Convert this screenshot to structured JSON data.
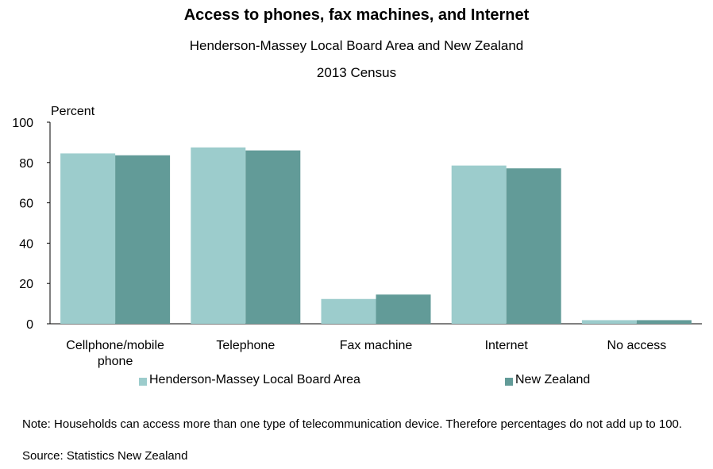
{
  "chart_data": {
    "type": "bar",
    "title": "Access to phones, fax machines, and Internet",
    "subtitle": "Henderson-Massey Local Board Area and New Zealand",
    "subtitle2": "2013 Census",
    "ylabel": "Percent",
    "ylim": [
      0,
      100
    ],
    "yticks": [
      0,
      20,
      40,
      60,
      80,
      100
    ],
    "categories": [
      [
        "Cellphone/mobile",
        "phone"
      ],
      [
        "Telephone"
      ],
      [
        "Fax machine"
      ],
      [
        "Internet"
      ],
      [
        "No access"
      ]
    ],
    "series": [
      {
        "name": "Henderson-Massey Local Board Area",
        "color": "#9ccccc",
        "values": [
          84.5,
          87.5,
          12.3,
          78.5,
          1.8
        ]
      },
      {
        "name": "New Zealand",
        "color": "#629b98",
        "values": [
          83.6,
          86.0,
          14.5,
          77.1,
          1.8
        ]
      }
    ],
    "grid": false,
    "legend": "bottom"
  },
  "note": "Note: Households can access more than one type of telecommunication device. Therefore percentages do not add up to 100.",
  "source": "Source: Statistics New Zealand"
}
